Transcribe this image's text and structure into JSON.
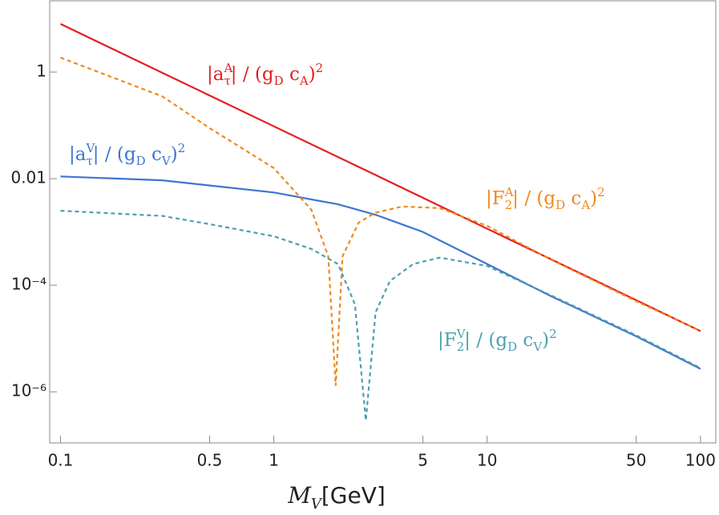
{
  "chart_data": {
    "type": "line",
    "xlabel": {
      "symbol": "M",
      "subscript": "V",
      "unit": "[GeV]"
    },
    "xscale": "log",
    "yscale": "log",
    "xlim": [
      0.089,
      118
    ],
    "ylim": [
      1.1e-07,
      22.5
    ],
    "xticks": [
      0.1,
      0.5,
      1,
      5,
      10,
      50,
      100
    ],
    "yticks": [
      {
        "value": 1,
        "label": "1"
      },
      {
        "value": 0.01,
        "label": "0.01"
      },
      {
        "value": 0.0001,
        "label": "10⁻⁴"
      },
      {
        "value": 1e-06,
        "label": "10⁻⁶"
      }
    ],
    "series": [
      {
        "color": "#e41f1f",
        "style": "solid",
        "x": [
          0.1,
          0.3,
          1,
          3,
          10,
          30,
          100
        ],
        "values": [
          8,
          0.97,
          0.096,
          0.0117,
          0.00115,
          0.00014,
          1.38e-05
        ],
        "label": [
          {
            "text": "|a"
          },
          {
            "text": "A",
            "shift": "sup"
          },
          {
            "text": "τ",
            "shift": "sub"
          },
          {
            "text": "| / (g"
          },
          {
            "text": "D",
            "shift": "sub"
          },
          {
            "text": " c"
          },
          {
            "text": "A",
            "shift": "sub"
          },
          {
            "text": ")"
          },
          {
            "text": "2",
            "shift": "sup"
          }
        ]
      },
      {
        "color": "#3d76cf",
        "style": "solid",
        "x": [
          0.1,
          0.3,
          1,
          2,
          3,
          5,
          10,
          20,
          50,
          100
        ],
        "values": [
          0.011,
          0.0093,
          0.0055,
          0.0033,
          0.0021,
          0.001,
          0.00025,
          6.2e-05,
          1.1e-05,
          2.7e-06
        ],
        "label": [
          {
            "text": "|a"
          },
          {
            "text": "V",
            "shift": "sup"
          },
          {
            "text": "τ",
            "shift": "sub"
          },
          {
            "text": "| / (g"
          },
          {
            "text": "D",
            "shift": "sub"
          },
          {
            "text": " c"
          },
          {
            "text": "V",
            "shift": "sub"
          },
          {
            "text": ")"
          },
          {
            "text": "2",
            "shift": "sup"
          }
        ]
      },
      {
        "color": "#f0891a",
        "style": "dashed",
        "x": [
          0.1,
          0.3,
          0.5,
          1,
          1.5,
          1.8,
          1.95,
          2.1,
          2.5,
          3,
          4,
          6,
          10,
          20,
          50,
          100
        ],
        "values": [
          1.87,
          0.35,
          0.089,
          0.0158,
          0.0026,
          0.00035,
          1.3e-06,
          0.00035,
          0.0015,
          0.0023,
          0.003,
          0.0028,
          0.0013,
          0.0003,
          5e-05,
          1.4e-05
        ],
        "label": [
          {
            "text": "|F"
          },
          {
            "text": "A",
            "shift": "sup"
          },
          {
            "text": "2",
            "shift": "sub"
          },
          {
            "text": "| / (g"
          },
          {
            "text": "D",
            "shift": "sub"
          },
          {
            "text": " c"
          },
          {
            "text": "A",
            "shift": "sub"
          },
          {
            "text": ")"
          },
          {
            "text": "2",
            "shift": "sup"
          }
        ]
      },
      {
        "color": "#4b9fb0",
        "style": "dashed",
        "x": [
          0.1,
          0.3,
          0.5,
          1,
          1.5,
          2,
          2.4,
          2.7,
          3,
          3.5,
          4.5,
          6,
          10,
          20,
          50,
          100
        ],
        "values": [
          0.0025,
          0.002,
          0.0014,
          0.00083,
          0.00048,
          0.00025,
          4.4e-05,
          2.9e-07,
          3.1e-05,
          0.00012,
          0.00025,
          0.00033,
          0.00023,
          6.4e-05,
          1.15e-05,
          2.8e-06
        ],
        "label": [
          {
            "text": "|F"
          },
          {
            "text": "V",
            "shift": "sup"
          },
          {
            "text": "2",
            "shift": "sub"
          },
          {
            "text": "| / (g"
          },
          {
            "text": "D",
            "shift": "sub"
          },
          {
            "text": " c"
          },
          {
            "text": "V",
            "shift": "sub"
          },
          {
            "text": ")"
          },
          {
            "text": "2",
            "shift": "sup"
          }
        ]
      }
    ]
  }
}
